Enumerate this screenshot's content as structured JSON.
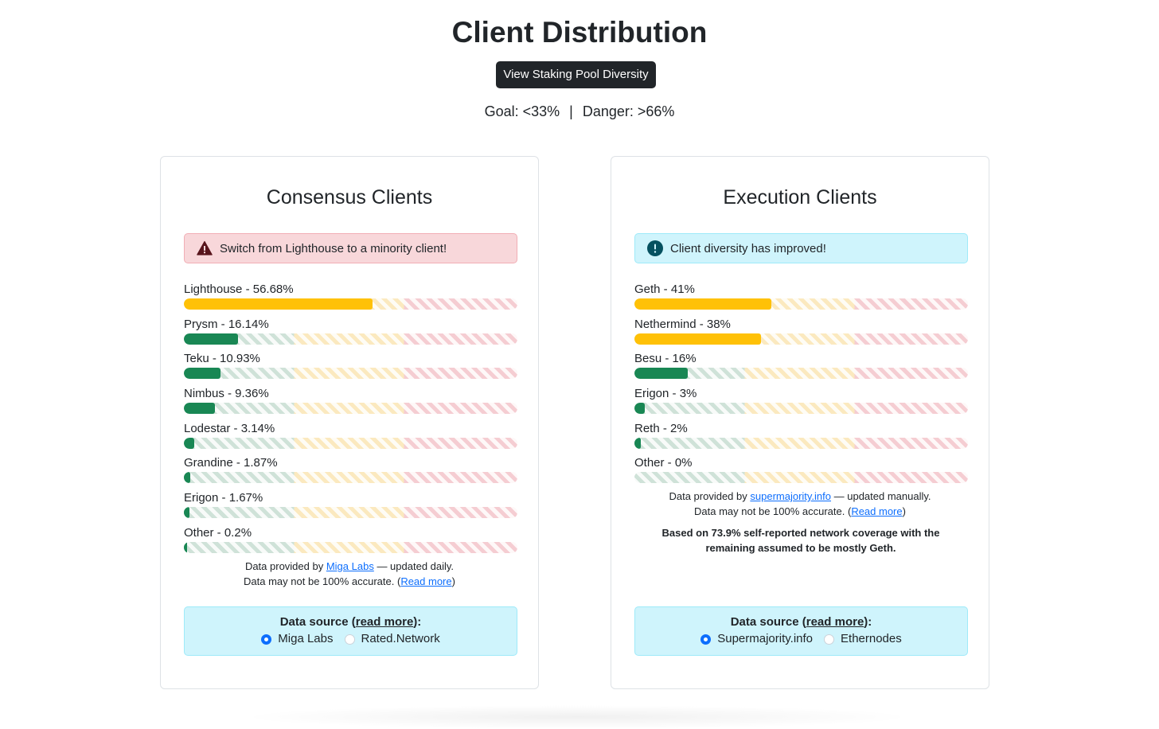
{
  "header": {
    "title": "Client Distribution",
    "button_label": "View Staking Pool Diversity",
    "goal": "Goal: <33%",
    "separator": "|",
    "danger": "Danger: >66%"
  },
  "colors": {
    "green": "#198754",
    "yellow": "#ffc107",
    "danger_bg": "#f8d7da",
    "info_bg": "#cff4fc",
    "link": "#0d6efd"
  },
  "consensus": {
    "title": "Consensus Clients",
    "alert": {
      "icon": "warning-triangle-icon",
      "text": "Switch from Lighthouse to a minority client!"
    },
    "clients": [
      {
        "label": "Lighthouse - 56.68%",
        "percent": 56.68,
        "color": "yellow"
      },
      {
        "label": "Prysm - 16.14%",
        "percent": 16.14,
        "color": "green"
      },
      {
        "label": "Teku - 10.93%",
        "percent": 10.93,
        "color": "green"
      },
      {
        "label": "Nimbus - 9.36%",
        "percent": 9.36,
        "color": "green"
      },
      {
        "label": "Lodestar - 3.14%",
        "percent": 3.14,
        "color": "green"
      },
      {
        "label": "Grandine - 1.87%",
        "percent": 1.87,
        "color": "green"
      },
      {
        "label": "Erigon - 1.67%",
        "percent": 1.67,
        "color": "green"
      },
      {
        "label": "Other - 0.2%",
        "percent": 0.2,
        "color": "green"
      }
    ],
    "footnote": {
      "prefix": "Data provided by ",
      "link": "Miga Labs",
      "suffix": " — updated daily.",
      "line2_prefix": "Data may not be 100% accurate. (",
      "line2_link": "Read more",
      "line2_suffix": ")"
    },
    "source": {
      "title_prefix": "Data source (",
      "title_link": "read more",
      "title_suffix": "):",
      "options": [
        {
          "label": "Miga Labs",
          "selected": true
        },
        {
          "label": "Rated.Network",
          "selected": false
        }
      ]
    }
  },
  "execution": {
    "title": "Execution Clients",
    "alert": {
      "icon": "exclamation-circle-icon",
      "text": "Client diversity has improved!"
    },
    "clients": [
      {
        "label": "Geth - 41%",
        "percent": 41,
        "color": "yellow"
      },
      {
        "label": "Nethermind - 38%",
        "percent": 38,
        "color": "yellow"
      },
      {
        "label": "Besu - 16%",
        "percent": 16,
        "color": "green"
      },
      {
        "label": "Erigon - 3%",
        "percent": 3,
        "color": "green"
      },
      {
        "label": "Reth - 2%",
        "percent": 2,
        "color": "green"
      },
      {
        "label": "Other - 0%",
        "percent": 0,
        "color": "green"
      }
    ],
    "footnote": {
      "prefix": "Data provided by ",
      "link": "supermajority.info",
      "suffix": " — updated manually.",
      "line2_prefix": "Data may not be 100% accurate. (",
      "line2_link": "Read more",
      "line2_suffix": ")"
    },
    "bold_note": "Based on 73.9% self-reported network coverage with the remaining assumed to be mostly Geth.",
    "source": {
      "title_prefix": "Data source (",
      "title_link": "read more",
      "title_suffix": "):",
      "options": [
        {
          "label": "Supermajority.info",
          "selected": true
        },
        {
          "label": "Ethernodes",
          "selected": false
        }
      ]
    }
  }
}
